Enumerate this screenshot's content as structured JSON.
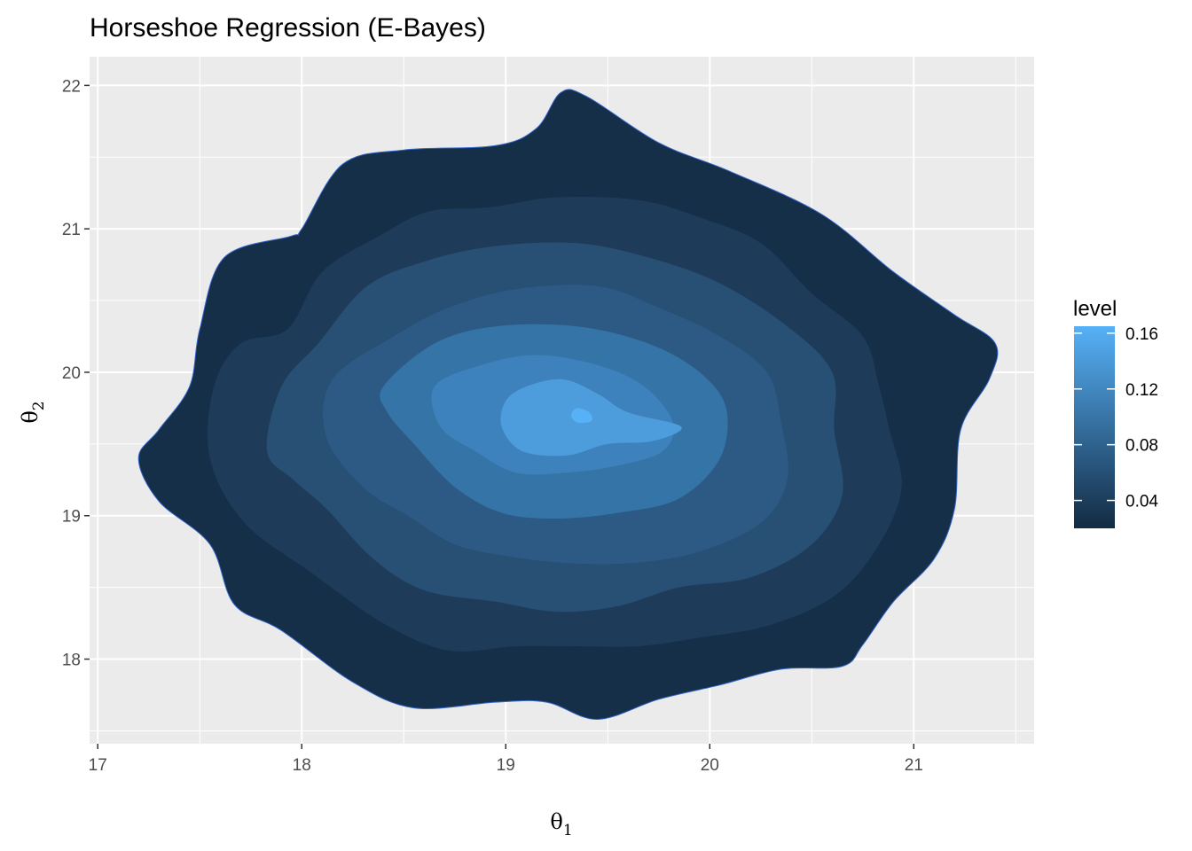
{
  "chart_data": {
    "type": "contour",
    "title": "Horseshoe Regression (E-Bayes)",
    "xlabel": {
      "symbol": "θ",
      "subscript": "1"
    },
    "ylabel": {
      "symbol": "θ",
      "subscript": "2"
    },
    "xlim": [
      16.96,
      21.59
    ],
    "ylim": [
      17.41,
      22.2
    ],
    "x_ticks": [
      17,
      18,
      19,
      20,
      21
    ],
    "y_ticks": [
      18,
      19,
      20,
      21,
      22
    ],
    "x_tick_labels": [
      "17",
      "18",
      "19",
      "20",
      "21"
    ],
    "y_tick_labels": [
      "18",
      "19",
      "20",
      "21",
      "22"
    ],
    "grid": true,
    "background": "#ebebeb",
    "legend": {
      "title": "level",
      "placement": "right",
      "range": [
        0.02,
        0.165
      ],
      "breaks": [
        0.04,
        0.08,
        0.12,
        0.16
      ],
      "labels": [
        "0.04",
        "0.08",
        "0.12",
        "0.16"
      ],
      "low_color": "#132b43",
      "high_color": "#56b1f7"
    },
    "series": [
      {
        "level": 0.02,
        "color": "#152f49",
        "points": [
          [
            17.2,
            19.4
          ],
          [
            17.3,
            19.6
          ],
          [
            17.45,
            19.9
          ],
          [
            17.5,
            20.3
          ],
          [
            17.62,
            20.8
          ],
          [
            17.95,
            20.95
          ],
          [
            18.0,
            21.0
          ],
          [
            18.2,
            21.45
          ],
          [
            18.5,
            21.55
          ],
          [
            18.95,
            21.58
          ],
          [
            19.15,
            21.7
          ],
          [
            19.27,
            21.95
          ],
          [
            19.4,
            21.92
          ],
          [
            19.75,
            21.6
          ],
          [
            20.1,
            21.4
          ],
          [
            20.55,
            21.1
          ],
          [
            20.9,
            20.7
          ],
          [
            21.2,
            20.4
          ],
          [
            21.4,
            20.2
          ],
          [
            21.37,
            19.95
          ],
          [
            21.23,
            19.6
          ],
          [
            21.2,
            19.05
          ],
          [
            21.1,
            18.7
          ],
          [
            20.9,
            18.4
          ],
          [
            20.75,
            18.1
          ],
          [
            20.65,
            17.95
          ],
          [
            20.35,
            17.93
          ],
          [
            20.05,
            17.82
          ],
          [
            19.75,
            17.72
          ],
          [
            19.45,
            17.58
          ],
          [
            19.2,
            17.7
          ],
          [
            18.95,
            17.7
          ],
          [
            18.55,
            17.66
          ],
          [
            18.25,
            17.84
          ],
          [
            17.9,
            18.2
          ],
          [
            17.67,
            18.38
          ],
          [
            17.55,
            18.8
          ],
          [
            17.3,
            19.1
          ]
        ]
      },
      {
        "level": 0.04,
        "color": "#1e3c5a",
        "points": [
          [
            17.55,
            19.4
          ],
          [
            17.57,
            19.9
          ],
          [
            17.7,
            20.2
          ],
          [
            17.93,
            20.3
          ],
          [
            18.1,
            20.7
          ],
          [
            18.38,
            20.95
          ],
          [
            18.62,
            21.12
          ],
          [
            18.92,
            21.15
          ],
          [
            19.25,
            21.22
          ],
          [
            19.65,
            21.2
          ],
          [
            19.95,
            21.08
          ],
          [
            20.25,
            20.9
          ],
          [
            20.5,
            20.55
          ],
          [
            20.75,
            20.25
          ],
          [
            20.83,
            19.9
          ],
          [
            20.88,
            19.6
          ],
          [
            20.94,
            19.2
          ],
          [
            20.83,
            18.8
          ],
          [
            20.62,
            18.45
          ],
          [
            20.3,
            18.24
          ],
          [
            19.95,
            18.15
          ],
          [
            19.65,
            18.09
          ],
          [
            19.35,
            18.09
          ],
          [
            19.05,
            18.09
          ],
          [
            18.72,
            18.06
          ],
          [
            18.4,
            18.25
          ],
          [
            18.05,
            18.6
          ],
          [
            17.72,
            18.95
          ]
        ]
      },
      {
        "level": 0.06,
        "color": "#284f74",
        "points": [
          [
            17.83,
            19.45
          ],
          [
            17.9,
            19.9
          ],
          [
            18.08,
            20.2
          ],
          [
            18.32,
            20.6
          ],
          [
            18.62,
            20.78
          ],
          [
            18.95,
            20.88
          ],
          [
            19.35,
            20.9
          ],
          [
            19.7,
            20.8
          ],
          [
            20.05,
            20.62
          ],
          [
            20.38,
            20.32
          ],
          [
            20.6,
            20.0
          ],
          [
            20.61,
            19.6
          ],
          [
            20.65,
            19.15
          ],
          [
            20.5,
            18.8
          ],
          [
            20.2,
            18.57
          ],
          [
            19.85,
            18.5
          ],
          [
            19.55,
            18.37
          ],
          [
            19.25,
            18.33
          ],
          [
            18.95,
            18.4
          ],
          [
            18.6,
            18.48
          ],
          [
            18.35,
            18.7
          ],
          [
            18.12,
            19.05
          ],
          [
            17.96,
            19.25
          ]
        ]
      },
      {
        "level": 0.08,
        "color": "#2d5a85",
        "points": [
          [
            18.12,
            19.55
          ],
          [
            18.15,
            19.95
          ],
          [
            18.45,
            20.25
          ],
          [
            18.72,
            20.45
          ],
          [
            19.05,
            20.58
          ],
          [
            19.45,
            20.6
          ],
          [
            19.75,
            20.45
          ],
          [
            20.05,
            20.25
          ],
          [
            20.28,
            20.0
          ],
          [
            20.35,
            19.65
          ],
          [
            20.38,
            19.25
          ],
          [
            20.25,
            18.95
          ],
          [
            19.95,
            18.75
          ],
          [
            19.62,
            18.67
          ],
          [
            19.3,
            18.67
          ],
          [
            19.0,
            18.72
          ],
          [
            18.75,
            18.8
          ],
          [
            18.52,
            19.0
          ],
          [
            18.3,
            19.2
          ]
        ]
      },
      {
        "level": 0.1,
        "color": "#3574a6",
        "points": [
          [
            18.4,
            19.9
          ],
          [
            18.65,
            20.2
          ],
          [
            18.95,
            20.32
          ],
          [
            19.35,
            20.32
          ],
          [
            19.7,
            20.2
          ],
          [
            19.95,
            20.0
          ],
          [
            20.08,
            19.75
          ],
          [
            20.05,
            19.4
          ],
          [
            19.85,
            19.12
          ],
          [
            19.55,
            19.02
          ],
          [
            19.25,
            18.98
          ],
          [
            18.98,
            19.02
          ],
          [
            18.75,
            19.2
          ],
          [
            18.55,
            19.5
          ],
          [
            18.42,
            19.72
          ]
        ]
      },
      {
        "level": 0.12,
        "color": "#3d82bc",
        "points": [
          [
            18.65,
            19.9
          ],
          [
            18.88,
            20.05
          ],
          [
            19.15,
            20.12
          ],
          [
            19.45,
            20.05
          ],
          [
            19.68,
            19.9
          ],
          [
            19.82,
            19.65
          ],
          [
            19.77,
            19.45
          ],
          [
            19.55,
            19.35
          ],
          [
            19.3,
            19.3
          ],
          [
            19.05,
            19.3
          ],
          [
            18.85,
            19.45
          ],
          [
            18.68,
            19.62
          ]
        ]
      },
      {
        "level": 0.14,
        "color": "#4d9ddc",
        "points": [
          [
            18.98,
            19.62
          ],
          [
            19.0,
            19.8
          ],
          [
            19.1,
            19.9
          ],
          [
            19.28,
            19.95
          ],
          [
            19.45,
            19.85
          ],
          [
            19.6,
            19.72
          ],
          [
            19.86,
            19.62
          ],
          [
            19.72,
            19.52
          ],
          [
            19.5,
            19.5
          ],
          [
            19.3,
            19.42
          ],
          [
            19.08,
            19.45
          ]
        ]
      },
      {
        "level": 0.16,
        "color": "#56b1f7",
        "points": [
          [
            19.32,
            19.7
          ],
          [
            19.35,
            19.75
          ],
          [
            19.41,
            19.72
          ],
          [
            19.42,
            19.66
          ],
          [
            19.35,
            19.65
          ]
        ]
      }
    ]
  }
}
